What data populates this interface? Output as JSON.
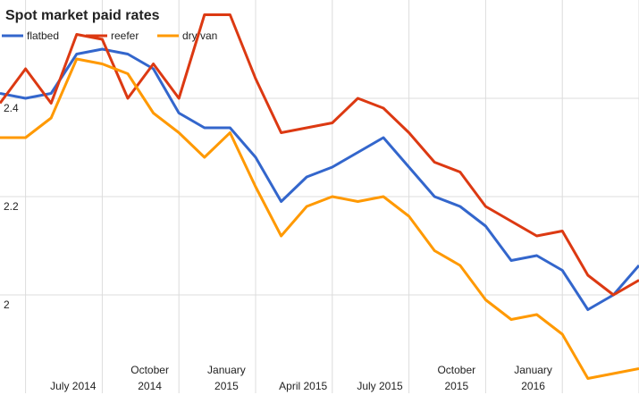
{
  "chart_data": {
    "type": "line",
    "title": "Spot market paid rates",
    "categories": [
      null,
      null,
      null,
      "July 2014",
      null,
      null,
      "October 2014",
      null,
      null,
      "January 2015",
      null,
      null,
      "April 2015",
      null,
      null,
      "July 2015",
      null,
      null,
      "October 2015",
      null,
      null,
      "January 2016",
      null,
      null,
      null,
      null
    ],
    "series": [
      {
        "name": "flatbed",
        "color": "#3366cc",
        "values": [
          2.41,
          2.4,
          2.41,
          2.49,
          2.5,
          2.49,
          2.46,
          2.37,
          2.34,
          2.34,
          2.28,
          2.19,
          2.24,
          2.26,
          2.29,
          2.32,
          2.26,
          2.2,
          2.18,
          2.14,
          2.07,
          2.08,
          2.05,
          1.97,
          2.0,
          2.06
        ]
      },
      {
        "name": "reefer",
        "color": "#dc3912",
        "values": [
          2.39,
          2.46,
          2.39,
          2.53,
          2.52,
          2.4,
          2.47,
          2.4,
          2.57,
          2.57,
          2.44,
          2.33,
          2.34,
          2.35,
          2.4,
          2.38,
          2.33,
          2.27,
          2.25,
          2.18,
          2.15,
          2.12,
          2.13,
          2.04,
          2.0,
          2.03
        ]
      },
      {
        "name": "dry van",
        "color": "#ff9900",
        "values": [
          2.32,
          2.32,
          2.36,
          2.48,
          2.47,
          2.45,
          2.37,
          2.33,
          2.28,
          2.33,
          2.22,
          2.12,
          2.18,
          2.2,
          2.19,
          2.2,
          2.16,
          2.09,
          2.06,
          1.99,
          1.95,
          1.96,
          1.92,
          1.83,
          1.84,
          1.85
        ]
      }
    ],
    "ylim": [
      1.8,
      2.6
    ],
    "yticks": [
      2,
      2.2,
      2.4
    ],
    "grid": true
  }
}
